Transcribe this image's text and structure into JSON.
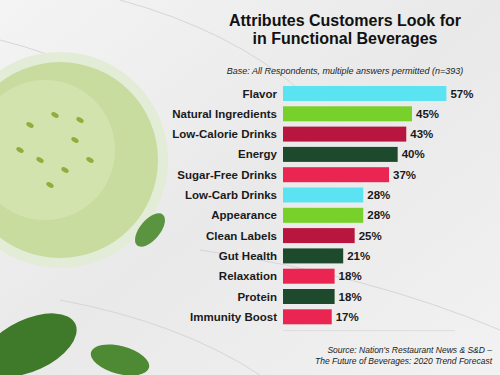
{
  "chart_data": {
    "type": "bar",
    "orientation": "horizontal",
    "title": [
      "Attributes Customers Look for",
      "in Functional Beverages"
    ],
    "subtitle": "Base: All Respondents, multiple answers permitted (n=393)",
    "categories": [
      "Flavor",
      "Natural Ingredients",
      "Low-Calorie Drinks",
      "Energy",
      "Sugar-Free Drinks",
      "Low-Carb Drinks",
      "Appearance",
      "Clean Labels",
      "Gut Health",
      "Relaxation",
      "Protein",
      "Immunity Boost"
    ],
    "values": [
      57,
      45,
      43,
      40,
      37,
      28,
      28,
      25,
      21,
      18,
      18,
      17
    ],
    "value_labels": [
      "57%",
      "45%",
      "43%",
      "40%",
      "37%",
      "28%",
      "28%",
      "25%",
      "21%",
      "18%",
      "18%",
      "17%"
    ],
    "colors": [
      "#5ce3f2",
      "#78d12a",
      "#b8163e",
      "#1d4a2c",
      "#ea2552",
      "#5ce3f2",
      "#78d12a",
      "#b8163e",
      "#1d4a2c",
      "#ea2552",
      "#1d4a2c",
      "#ea2552"
    ],
    "xlim": [
      0,
      60
    ],
    "data_labels": true,
    "tick_labels": false,
    "grid": false,
    "source": [
      "Source: Nation's Restaurant News & S&D –",
      "The Future of Beverages: 2020 Trend Forecast"
    ]
  }
}
